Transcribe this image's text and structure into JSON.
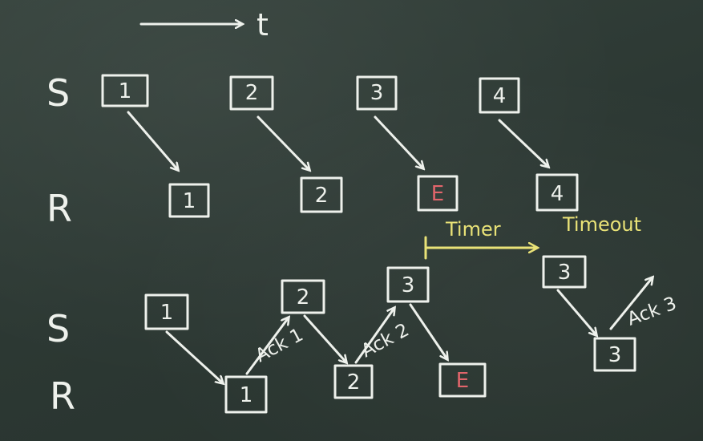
{
  "time_label": "t",
  "top": {
    "sender_label": "S",
    "receiver_label": "R",
    "sent": [
      "1",
      "2",
      "3",
      "4"
    ],
    "received": [
      "1",
      "2",
      "E",
      "4"
    ]
  },
  "timer_label": "Timer",
  "timeout_label": "Timeout",
  "bottom": {
    "sender_label": "S",
    "receiver_label": "R",
    "sent": [
      "1",
      "2",
      "3"
    ],
    "received": [
      "1",
      "2",
      "E"
    ],
    "acks": [
      "Ack 1",
      "Ack 2",
      "Ack 3"
    ],
    "resend": "3",
    "resend_received": "3"
  },
  "colors": {
    "board": "#2f3b36",
    "chalk": "#eef1ec",
    "yellow": "#e9e277",
    "error": "#e2656b"
  }
}
